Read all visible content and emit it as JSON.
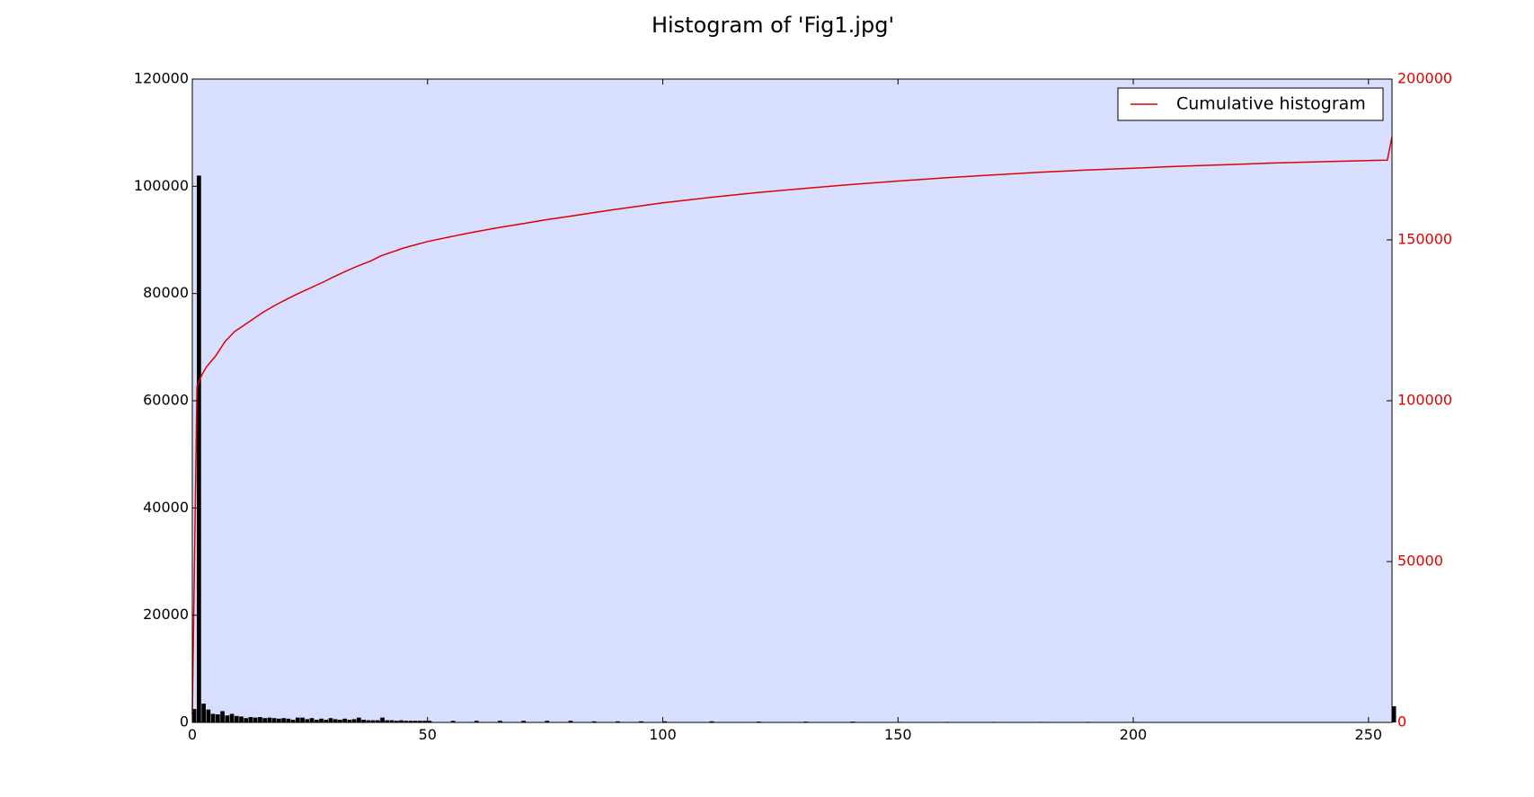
{
  "chart_data": {
    "type": "bar",
    "title": "Histogram of 'Fig1.jpg'",
    "xlabel": "",
    "ylabel": "",
    "xlim": [
      0,
      255
    ],
    "ylim": [
      0,
      120000
    ],
    "y2lim": [
      0,
      200000
    ],
    "x_ticks": [
      "0",
      "50",
      "100",
      "150",
      "200",
      "250"
    ],
    "y_ticks": [
      "0",
      "20000",
      "40000",
      "60000",
      "80000",
      "100000",
      "120000"
    ],
    "y2_ticks": [
      "0",
      "50000",
      "100000",
      "150000",
      "200000"
    ],
    "grid": false,
    "legend_position": "top-right",
    "colors": {
      "plot_background": "#d8dffe",
      "bars": "#000000",
      "cumulative_line": "#e00000",
      "right_axis": "#e00000"
    },
    "series": [
      {
        "kind": "bar",
        "axis": "left",
        "x": [
          0,
          1,
          2,
          3,
          4,
          5,
          6,
          7,
          8,
          9,
          10,
          11,
          12,
          13,
          14,
          15,
          16,
          17,
          18,
          19,
          20,
          21,
          22,
          23,
          24,
          25,
          26,
          27,
          28,
          29,
          30,
          31,
          32,
          33,
          34,
          35,
          36,
          37,
          38,
          39,
          40,
          41,
          42,
          43,
          44,
          45,
          46,
          47,
          48,
          49,
          50,
          55,
          60,
          65,
          70,
          75,
          80,
          85,
          90,
          95,
          100,
          110,
          120,
          130,
          140,
          150,
          160,
          170,
          180,
          190,
          200,
          210,
          220,
          230,
          240,
          250,
          255
        ],
        "values": [
          2500,
          102000,
          3500,
          2400,
          1600,
          1500,
          2100,
          1300,
          1600,
          1200,
          1100,
          800,
          1000,
          900,
          1000,
          800,
          900,
          800,
          700,
          800,
          700,
          500,
          900,
          900,
          600,
          800,
          500,
          700,
          500,
          800,
          600,
          500,
          700,
          500,
          600,
          900,
          500,
          400,
          400,
          400,
          900,
          400,
          400,
          300,
          400,
          300,
          300,
          300,
          300,
          300,
          300,
          300,
          300,
          300,
          300,
          300,
          300,
          200,
          200,
          200,
          200,
          200,
          150,
          150,
          150,
          100,
          100,
          100,
          100,
          100,
          100,
          80,
          80,
          80,
          80,
          80,
          3000
        ]
      },
      {
        "kind": "line",
        "axis": "right",
        "name": "Cumulative histogram",
        "x": [
          0,
          1,
          2,
          3,
          5,
          7,
          9,
          11,
          13,
          15,
          18,
          20,
          22,
          25,
          28,
          30,
          33,
          35,
          38,
          40,
          45,
          50,
          55,
          60,
          65,
          70,
          75,
          80,
          85,
          90,
          95,
          100,
          110,
          120,
          130,
          140,
          150,
          160,
          170,
          180,
          190,
          200,
          210,
          220,
          230,
          240,
          254,
          255
        ],
        "values": [
          2500,
          104500,
          108000,
          110500,
          114000,
          118500,
          121500,
          123500,
          125500,
          127500,
          130000,
          131500,
          133000,
          135000,
          137000,
          138500,
          140500,
          141800,
          143500,
          145000,
          147500,
          149500,
          151000,
          152500,
          153800,
          155000,
          156200,
          157300,
          158400,
          159500,
          160500,
          161500,
          163200,
          164700,
          166000,
          167200,
          168300,
          169300,
          170200,
          171000,
          171700,
          172300,
          172900,
          173400,
          173900,
          174300,
          174800,
          182000
        ]
      }
    ]
  }
}
